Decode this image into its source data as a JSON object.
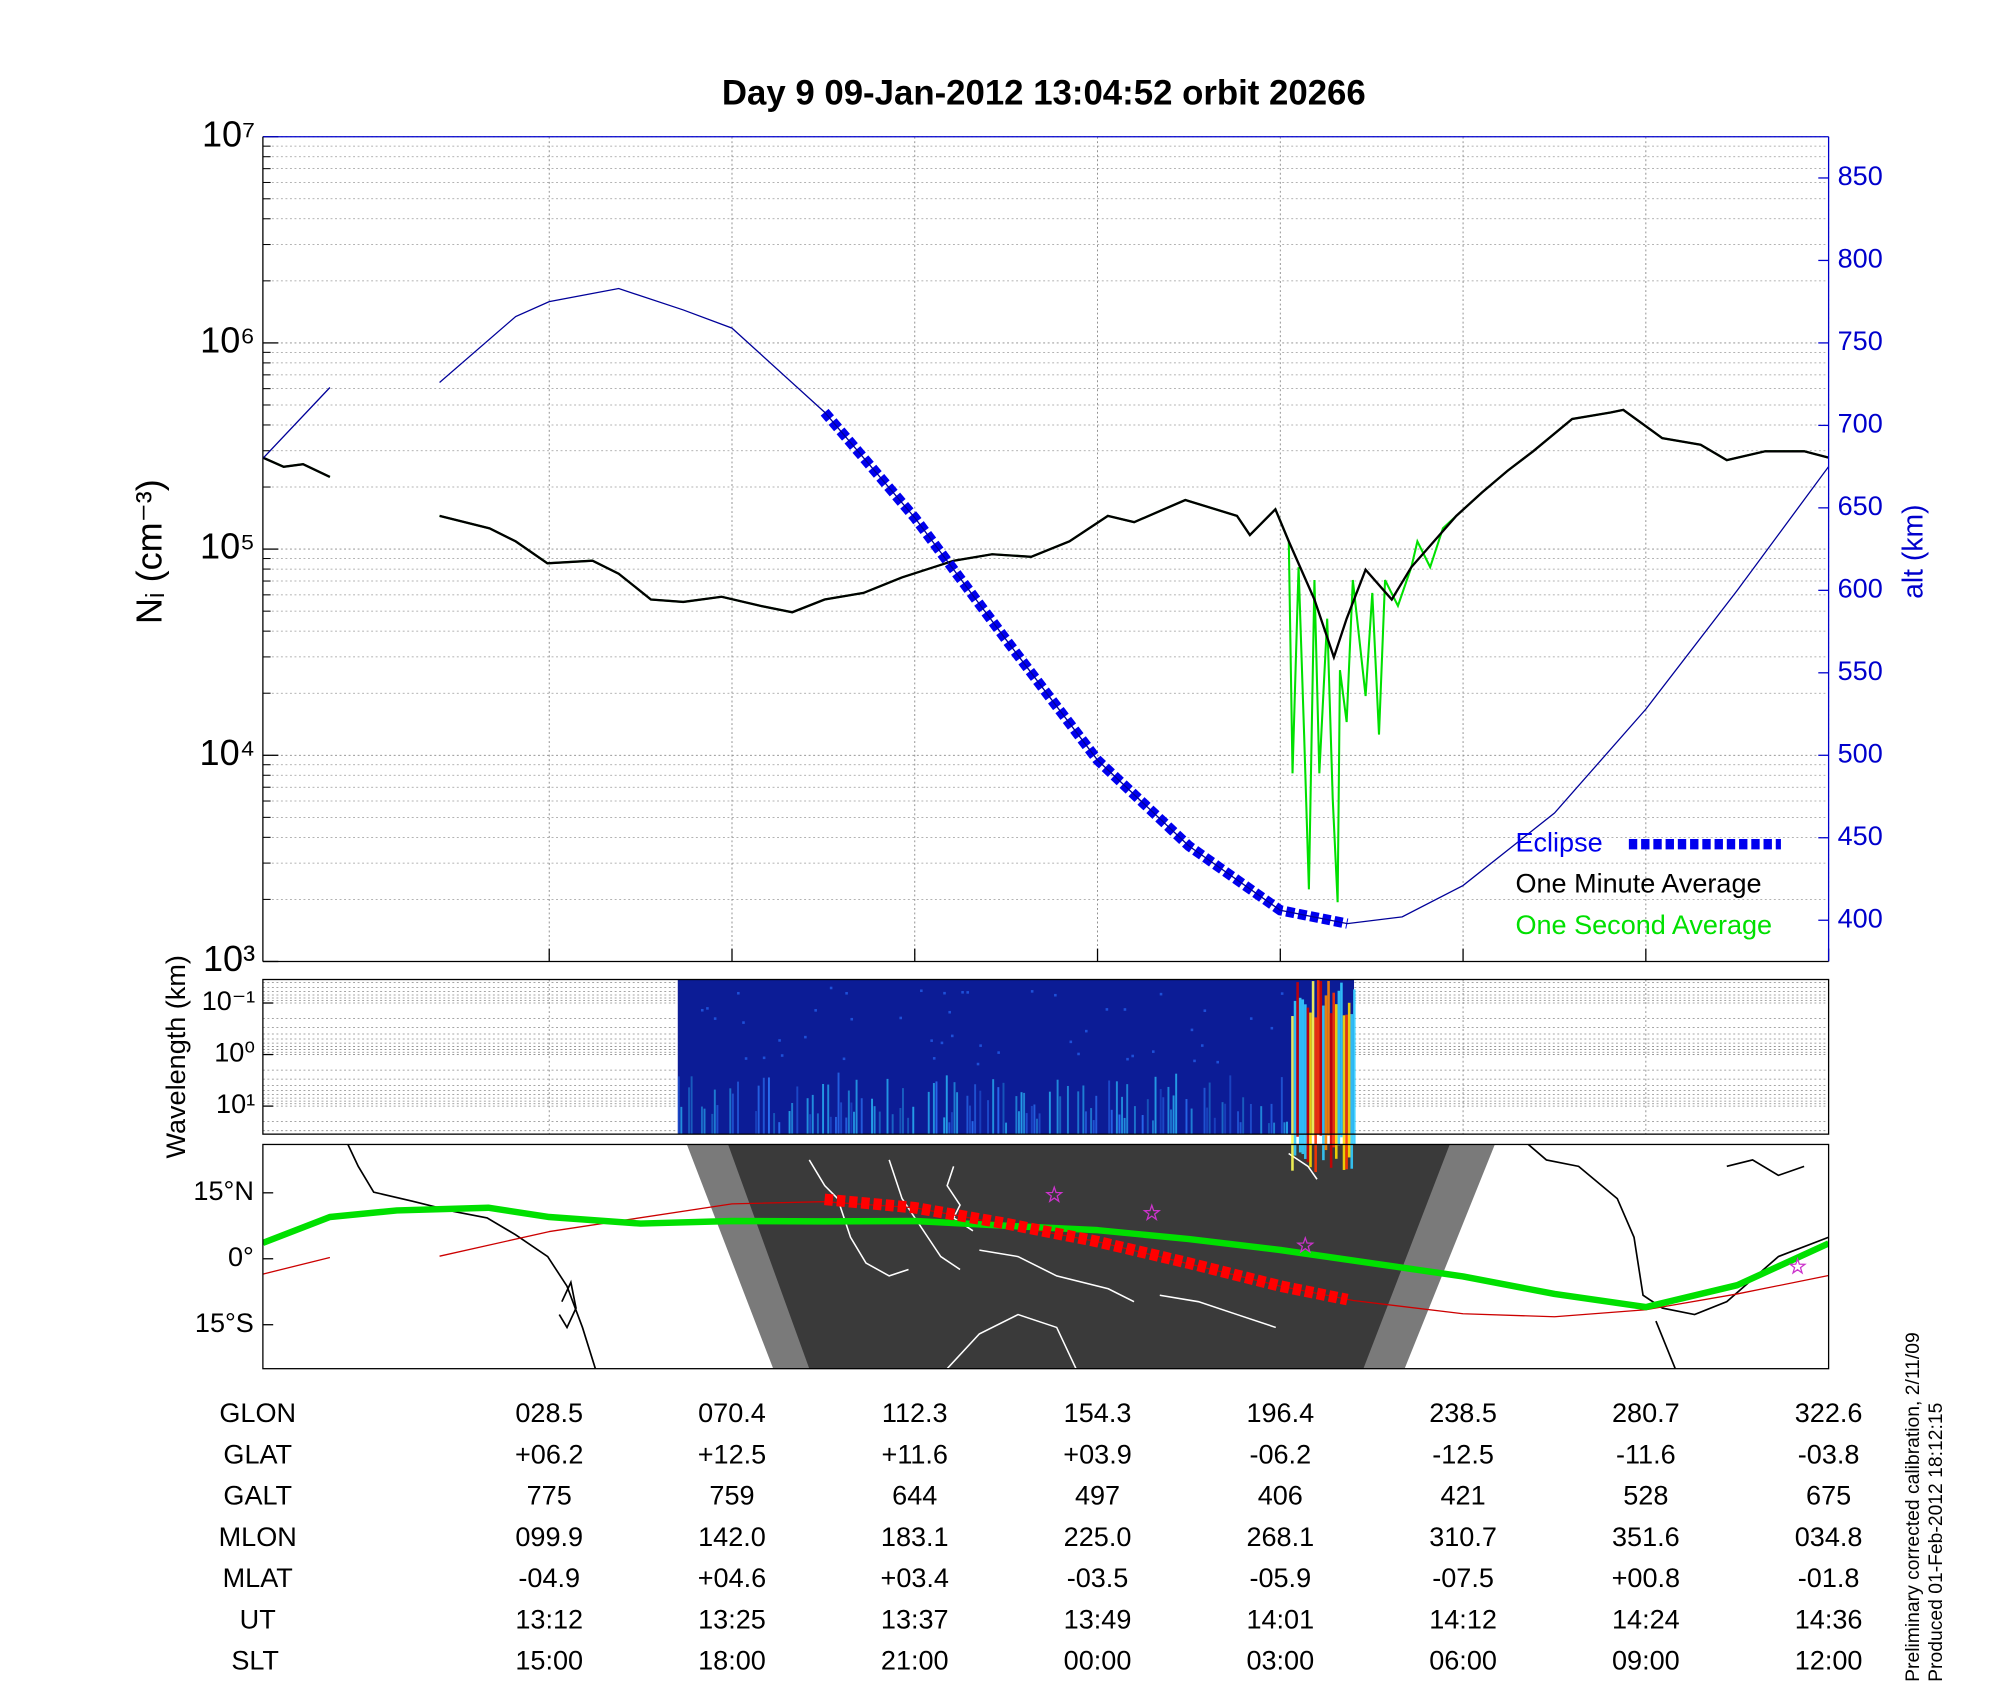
{
  "chart_data": [
    {
      "type": "line",
      "title": "Day 9  09-Jan-2012 13:04:52   orbit 20266",
      "ylabel": "Nᵢ (cm⁻³)",
      "y2label": "alt (km)",
      "ylog": true,
      "grid": true,
      "legend": "lower right",
      "xlim": [
        10.3,
        36
      ],
      "xticks": [
        {
          "value": 15,
          "label": "15:00"
        },
        {
          "value": 18,
          "label": "18:00"
        },
        {
          "value": 21,
          "label": "21:00"
        },
        {
          "value": 24,
          "label": "00:00"
        },
        {
          "value": 27,
          "label": "03:00"
        },
        {
          "value": 30,
          "label": "06:00"
        },
        {
          "value": 33,
          "label": "09:00"
        },
        {
          "value": 36,
          "label": "12:00"
        }
      ],
      "ylim": [
        1000,
        10000000
      ],
      "yticks": [
        {
          "value": 1000,
          "label": "10³"
        },
        {
          "value": 10000,
          "label": "10⁴"
        },
        {
          "value": 100000,
          "label": "10⁵"
        },
        {
          "value": 1000000,
          "label": "10⁶"
        },
        {
          "value": 10000000,
          "label": "10⁷"
        }
      ],
      "y2lim": [
        375,
        875
      ],
      "y2ticks": [
        400,
        450,
        500,
        550,
        600,
        650,
        700,
        750,
        800,
        850
      ],
      "series": [
        {
          "color": "#000099",
          "axis": "y2",
          "x": [
            10.3,
            11.4,
            12.3,
            13.2,
            14.45,
            15,
            16.14,
            17.2,
            18,
            19.52,
            21,
            22.5,
            24,
            25.5,
            27,
            28.1,
            29,
            30,
            31.5,
            33,
            34.5,
            36
          ],
          "values": [
            680,
            723,
            null,
            726,
            766,
            775,
            783,
            770,
            759,
            708,
            644,
            570,
            497,
            445,
            406,
            398,
            402,
            421,
            465,
            528,
            600,
            675
          ]
        },
        {
          "name": "Eclipse",
          "color": "#0000ee",
          "axis": "y2",
          "linestyle": "dotted",
          "x": [
            19.52,
            21,
            22.5,
            24,
            25.5,
            27,
            28.1
          ],
          "values": [
            708,
            644,
            570,
            497,
            445,
            406,
            398
          ]
        },
        {
          "name": "One Minute Average",
          "color": "#000000",
          "x": [
            10.3,
            10.64,
            10.96,
            11.4,
            12.3,
            13.2,
            14.02,
            14.45,
            14.97,
            15.71,
            16.14,
            16.67,
            17.2,
            17.83,
            18.46,
            18.99,
            19.52,
            20.16,
            20.79,
            21.64,
            22.27,
            22.91,
            23.54,
            24.17,
            24.6,
            25.44,
            26.29,
            26.5,
            26.92,
            27.14,
            27.56,
            27.88,
            28.09,
            28.4,
            28.83,
            29.15,
            29.89,
            30.31,
            30.73,
            31.15,
            31.79,
            32.42,
            32.63,
            33.27,
            33.9,
            34.33,
            34.96,
            35.6,
            36
          ],
          "values": [
            278000,
            251000,
            258000,
            224000,
            null,
            145000,
            126000,
            109000,
            85300,
            87900,
            76000,
            57000,
            55400,
            58700,
            53100,
            49400,
            57000,
            61300,
            72900,
            87900,
            94400,
            91700,
            109000,
            145000,
            135000,
            173000,
            145000,
            117000,
            156000,
            109000,
            57000,
            29900,
            46000,
            79400,
            57000,
            81800,
            145000,
            188000,
            240000,
            298000,
            428000,
            460000,
            473000,
            345000,
            321000,
            270000,
            298000,
            298000,
            278000
          ]
        },
        {
          "name": "One Second Average",
          "color": "#00e000",
          "x": [
            10.3,
            10.64,
            10.96,
            11.4,
            12.3,
            13.2,
            14.02,
            14.45,
            14.97,
            15.71,
            16.14,
            16.67,
            17.2,
            17.83,
            18.46,
            18.99,
            19.52,
            20.16,
            20.79,
            21.64,
            22.27,
            22.91,
            23.54,
            24.17,
            24.6,
            25.44,
            26.29,
            26.5,
            26.92,
            27.14,
            27.2,
            27.3,
            27.39,
            27.47,
            27.56,
            27.64,
            27.77,
            27.86,
            27.94,
            27.98,
            28.09,
            28.19,
            28.4,
            28.51,
            28.62,
            28.72,
            28.93,
            29.15,
            29.25,
            29.46,
            29.67,
            29.89,
            30.31,
            30.73,
            31.15,
            31.79,
            32.42,
            32.63,
            33.27,
            33.9,
            34.33,
            34.96,
            35.6,
            36
          ],
          "values": [
            278000,
            251000,
            258000,
            224000,
            null,
            145000,
            126000,
            109000,
            85300,
            87900,
            76000,
            57000,
            55400,
            58700,
            53100,
            49400,
            57000,
            61300,
            72900,
            87900,
            94400,
            91700,
            109000,
            145000,
            135000,
            173000,
            145000,
            117000,
            156000,
            109000,
            8170,
            81800,
            12600,
            2240,
            70800,
            8170,
            46000,
            6130,
            1940,
            25900,
            14500,
            70800,
            19400,
            61300,
            12600,
            70800,
            53100,
            81800,
            109000,
            81800,
            126000,
            145000,
            188000,
            240000,
            298000,
            428000,
            460000,
            473000,
            345000,
            321000,
            270000,
            298000,
            298000,
            278000
          ]
        }
      ]
    },
    {
      "type": "spectrogram",
      "ylabel": "Wavelength (km)",
      "ylog": true,
      "y_reversed": true,
      "ylim": [
        0.035,
        35
      ],
      "yticks": [
        {
          "value": 0.1,
          "label": "10⁻¹"
        },
        {
          "value": 1,
          "label": "10⁰"
        },
        {
          "value": 10,
          "label": "10¹"
        }
      ],
      "x": [
        17.11,
        28.21
      ]
    },
    {
      "type": "map",
      "ylim": [
        -25,
        26
      ],
      "yticks": [
        {
          "value": -15,
          "label": "15°S"
        },
        {
          "value": 0,
          "label": "0°"
        },
        {
          "value": 15,
          "label": "15°N"
        }
      ],
      "series": [
        {
          "color": "#cc0000",
          "width": 1,
          "x": [
            10.3,
            11.4,
            12.3,
            13.2,
            15,
            18,
            19.5,
            21,
            24,
            27,
            28.2,
            30,
            31.5,
            33,
            34.5,
            36
          ],
          "values": [
            -3.5,
            0.3,
            null,
            0.6,
            6.2,
            12.5,
            13,
            11.6,
            3.9,
            -6.2,
            -9.5,
            -12.5,
            -13.2,
            -11.6,
            -8,
            -3.8
          ]
        },
        {
          "color": "#00e000",
          "width": 5,
          "x": [
            10.3,
            11.4,
            12.5,
            14,
            15,
            16.5,
            18,
            19.5,
            21,
            22.5,
            24,
            25.5,
            27,
            28.5,
            30,
            31.5,
            33,
            34.5,
            36
          ],
          "values": [
            3.6,
            9.5,
            11,
            11.6,
            9.5,
            8,
            8.6,
            8.5,
            8.6,
            7.5,
            6.5,
            4.5,
            2,
            -1,
            -4,
            -8,
            -11,
            -6,
            3.5
          ]
        },
        {
          "color": "#ff0000",
          "width": 9,
          "linestyle": "dotted",
          "x": [
            19.52,
            21,
            22.5,
            24,
            25.5,
            27,
            28.1
          ],
          "values": [
            13.5,
            11.6,
            8,
            3.9,
            -1,
            -6.2,
            -9.3
          ]
        }
      ],
      "markers": {
        "color": "#cc33cc",
        "x": [
          23.29,
          24.89,
          27.41,
          35.49
        ],
        "values": [
          14.5,
          10.4,
          3,
          -1.8
        ]
      }
    }
  ],
  "table": {
    "rows": [
      {
        "name": "GLON",
        "values": [
          "028.5",
          "070.4",
          "112.3",
          "154.3",
          "196.4",
          "238.5",
          "280.7",
          "322.6"
        ]
      },
      {
        "name": "GLAT",
        "values": [
          "+06.2",
          "+12.5",
          "+11.6",
          "+03.9",
          "-06.2",
          "-12.5",
          "-11.6",
          "-03.8"
        ]
      },
      {
        "name": "GALT",
        "values": [
          "775",
          "759",
          "644",
          "497",
          "406",
          "421",
          "528",
          "675"
        ]
      },
      {
        "name": "MLON",
        "values": [
          "099.9",
          "142.0",
          "183.1",
          "225.0",
          "268.1",
          "310.7",
          "351.6",
          "034.8"
        ]
      },
      {
        "name": "MLAT",
        "values": [
          "-04.9",
          "+04.6",
          "+03.4",
          "-03.5",
          "-05.9",
          "-07.5",
          "+00.8",
          "-01.8"
        ]
      },
      {
        "name": "UT",
        "values": [
          "13:12",
          "13:25",
          "13:37",
          "13:49",
          "14:01",
          "14:12",
          "14:24",
          "14:36"
        ]
      }
    ],
    "slt_name": "SLT"
  },
  "notes": [
    "Preliminary corrected calibration, 2/11/09",
    "Produced 01-Feb-2012 18:12:15"
  ]
}
